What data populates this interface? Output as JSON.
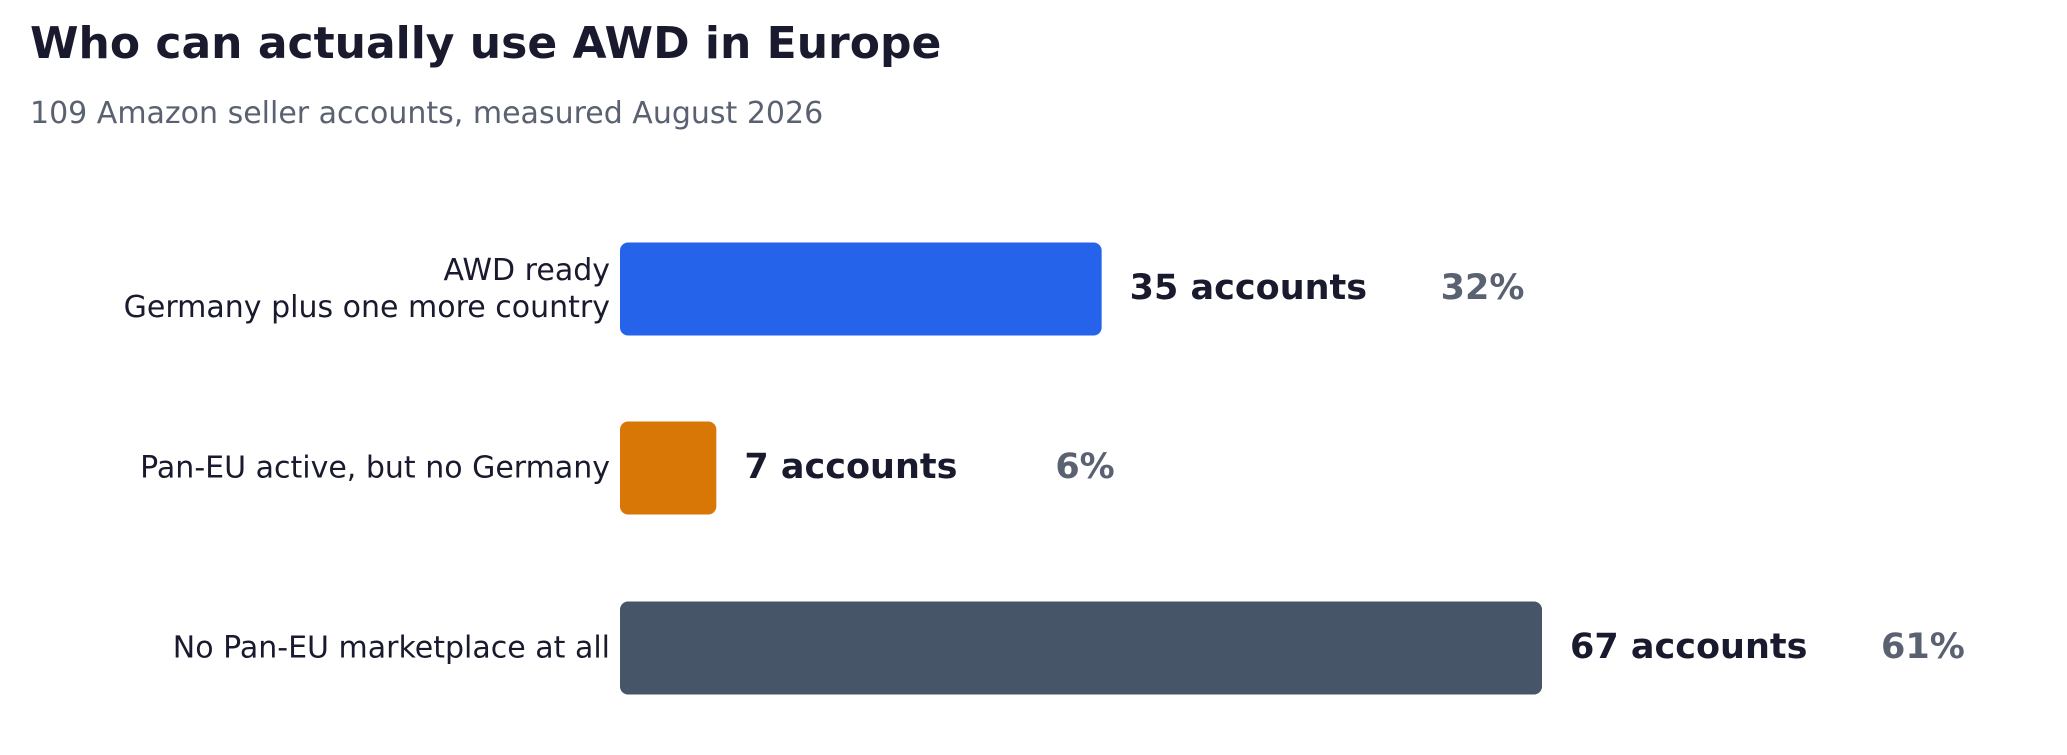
{
  "chart_data": {
    "type": "hbar",
    "title": "Who can actually use AWD in Europe",
    "subtitle": "109 Amazon seller accounts, measured August 2026",
    "categories": [
      "AWD ready\nGermany plus one more country",
      "Pan-EU active, but no Germany",
      "No Pan-EU marketplace at all"
    ],
    "values": [
      35,
      7,
      67
    ],
    "value_labels": [
      "35 accounts",
      "7 accounts",
      "67 accounts"
    ],
    "shares": [
      32,
      6,
      61
    ],
    "share_labels": [
      "32%",
      "6%",
      "61%"
    ],
    "colors": [
      "#2563eb",
      "#d97706",
      "#475569"
    ]
  }
}
